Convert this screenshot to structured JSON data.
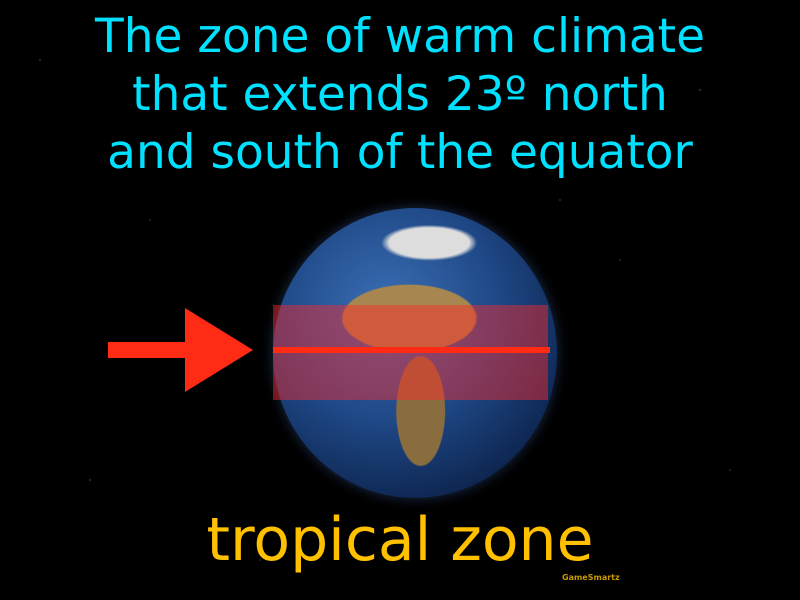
{
  "definition": {
    "lines": [
      "The zone of warm climate",
      "that extends 23º north",
      "and south of the equator"
    ]
  },
  "term": "tropical zone",
  "watermark": "GameSmartz",
  "colors": {
    "definition": "#00e1ff",
    "term": "#ffc000",
    "arrow": "#ff2b14",
    "background": "#000000"
  },
  "icons": {
    "arrow": "arrow-right-icon",
    "globe": "earth-globe"
  }
}
